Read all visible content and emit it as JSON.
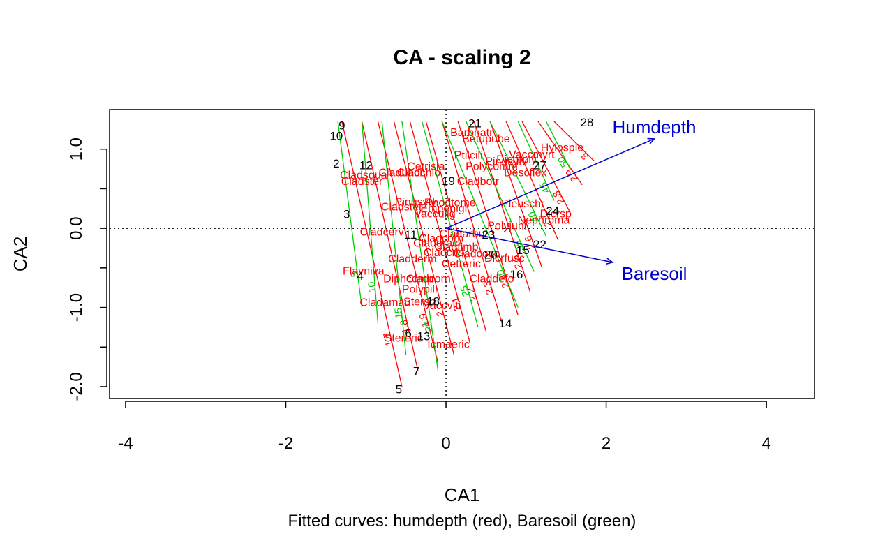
{
  "chart_data": {
    "type": "scatter",
    "title": "CA - scaling 2",
    "subtitle": "Fitted curves: humdepth (red), Baresoil (green)",
    "xlabel": "CA1",
    "ylabel": "CA2",
    "xlim": [
      -4.2,
      4.6
    ],
    "ylim": [
      -2.15,
      1.5
    ],
    "x_ticks": [
      -4,
      -2,
      0,
      2,
      4
    ],
    "y_ticks": [
      -2.0,
      -1.0,
      0.0,
      1.0
    ],
    "y_tick_labels": [
      "-2.0",
      "-1.0",
      "0.0",
      "1.0"
    ],
    "x_tick_labels": [
      "-4",
      "-2",
      "0",
      "2",
      "4"
    ],
    "colors": {
      "sites": "#000000",
      "species": "#ff0000",
      "env_arrows": "#0000cd",
      "humdepth_contours": "#ff0000",
      "baresoil_contours": "#00cc00",
      "axes": "#000000"
    },
    "sites": [
      {
        "label": "9",
        "x": -1.3,
        "y": 1.3
      },
      {
        "label": "10",
        "x": -1.37,
        "y": 1.17
      },
      {
        "label": "21",
        "x": 0.36,
        "y": 1.33
      },
      {
        "label": "28",
        "x": 1.76,
        "y": 1.34
      },
      {
        "label": "2",
        "x": -1.37,
        "y": 0.82
      },
      {
        "label": "12",
        "x": -1.0,
        "y": 0.8
      },
      {
        "label": "19",
        "x": 0.03,
        "y": 0.6
      },
      {
        "label": "27",
        "x": 1.17,
        "y": 0.8
      },
      {
        "label": "3",
        "x": -1.24,
        "y": 0.18
      },
      {
        "label": "24",
        "x": 1.33,
        "y": 0.22
      },
      {
        "label": "11",
        "x": -0.44,
        "y": -0.08
      },
      {
        "label": "23",
        "x": 0.53,
        "y": -0.08
      },
      {
        "label": "20",
        "x": 0.56,
        "y": -0.33
      },
      {
        "label": "15",
        "x": 0.96,
        "y": -0.27
      },
      {
        "label": "22",
        "x": 1.17,
        "y": -0.2
      },
      {
        "label": "16",
        "x": 0.88,
        "y": -0.58
      },
      {
        "label": "4",
        "x": -1.07,
        "y": -0.6
      },
      {
        "label": "18",
        "x": -0.16,
        "y": -0.92
      },
      {
        "label": "14",
        "x": 0.74,
        "y": -1.2
      },
      {
        "label": "6",
        "x": -0.47,
        "y": -1.32
      },
      {
        "label": "13",
        "x": -0.28,
        "y": -1.36
      },
      {
        "label": "7",
        "x": -0.37,
        "y": -1.8
      },
      {
        "label": "5",
        "x": -0.59,
        "y": -2.03
      }
    ],
    "species": [
      {
        "label": "Barbhatr",
        "x": 0.32,
        "y": 1.22
      },
      {
        "label": "Betupube",
        "x": 0.5,
        "y": 1.14
      },
      {
        "label": "Hylosple",
        "x": 1.45,
        "y": 1.03
      },
      {
        "label": "Vaccmyrt",
        "x": 1.07,
        "y": 0.94
      },
      {
        "label": "Ptilcili",
        "x": 0.28,
        "y": 0.93
      },
      {
        "label": "Dicrpoly",
        "x": 0.88,
        "y": 0.88
      },
      {
        "label": "Pinusylv",
        "x": 0.75,
        "y": 0.85
      },
      {
        "label": "Cetrisla",
        "x": -0.25,
        "y": 0.79
      },
      {
        "label": "Polycomm",
        "x": 0.57,
        "y": 0.79
      },
      {
        "label": "Descflex",
        "x": 0.99,
        "y": 0.71
      },
      {
        "label": "Cladsqua",
        "x": -1.03,
        "y": 0.68
      },
      {
        "label": "Claduncl",
        "x": -0.57,
        "y": 0.71
      },
      {
        "label": "Cladchlo",
        "x": -0.34,
        "y": 0.71
      },
      {
        "label": "Cladster",
        "x": -1.05,
        "y": 0.6
      },
      {
        "label": "Cladbotr",
        "x": 0.4,
        "y": 0.6
      },
      {
        "label": "Pinusylv2",
        "x": -0.38,
        "y": 0.34
      },
      {
        "label": "Rhodtome",
        "x": 0.05,
        "y": 0.33
      },
      {
        "label": "Pleuschr",
        "x": 0.96,
        "y": 0.32
      },
      {
        "label": "Cladstel",
        "x": -0.56,
        "y": 0.28
      },
      {
        "label": "Empenigr",
        "x": -0.02,
        "y": 0.26
      },
      {
        "label": "Vacculig",
        "x": -0.14,
        "y": 0.19
      },
      {
        "label": "Dicrsp",
        "x": 1.37,
        "y": 0.19
      },
      {
        "label": "Nephroma",
        "x": 1.22,
        "y": 0.11
      },
      {
        "label": "Polyjuni",
        "x": 0.76,
        "y": 0.04
      },
      {
        "label": "Cladcerv",
        "x": -0.8,
        "y": -0.04
      },
      {
        "label": "Cladarbu",
        "x": 0.2,
        "y": -0.06
      },
      {
        "label": "Cladcorn",
        "x": -0.06,
        "y": -0.12
      },
      {
        "label": "Cladgrac",
        "x": -0.13,
        "y": -0.18
      },
      {
        "label": "Cladfimb",
        "x": 0.13,
        "y": -0.23
      },
      {
        "label": "Cladcris",
        "x": -0.03,
        "y": -0.3
      },
      {
        "label": "Cladcocc",
        "x": 0.38,
        "y": -0.31
      },
      {
        "label": "Dicrfusc",
        "x": 0.73,
        "y": -0.37
      },
      {
        "label": "Cladderm",
        "x": -0.42,
        "y": -0.38
      },
      {
        "label": "Cetreric",
        "x": 0.19,
        "y": -0.44
      },
      {
        "label": "Flavniva",
        "x": -1.03,
        "y": -0.53
      },
      {
        "label": "Diphcomp",
        "x": -0.47,
        "y": -0.63
      },
      {
        "label": "Cladcorn2",
        "x": -0.22,
        "y": -0.63
      },
      {
        "label": "Claddefo",
        "x": 0.57,
        "y": -0.63
      },
      {
        "label": "Polypili",
        "x": -0.33,
        "y": -0.76
      },
      {
        "label": "Cladamau",
        "x": -0.76,
        "y": -0.93
      },
      {
        "label": "Stersp",
        "x": -0.33,
        "y": -0.92
      },
      {
        "label": "Vaccviti",
        "x": -0.05,
        "y": -0.97
      },
      {
        "label": "Stereric",
        "x": -0.53,
        "y": -1.38
      },
      {
        "label": "Icmaeric",
        "x": 0.03,
        "y": -1.46
      }
    ],
    "env_vectors": [
      {
        "label": "Humdepth",
        "x": 2.6,
        "y": 1.13,
        "label_x": 2.6,
        "label_y": 1.28
      },
      {
        "label": "Baresoil",
        "x": 2.08,
        "y": -0.43,
        "label_x": 2.6,
        "label_y": -0.57
      }
    ],
    "humdepth_contours": [
      {
        "level": "1.7",
        "x1": -1.3,
        "y1": 1.35,
        "x2": -0.55,
        "y2": -2.0
      },
      {
        "level": "1.8",
        "x1": -1.05,
        "y1": 1.35,
        "x2": -0.35,
        "y2": -1.8
      },
      {
        "level": "1.9",
        "x1": -0.85,
        "y1": 1.35,
        "x2": -0.1,
        "y2": -1.7
      },
      {
        "level": "2",
        "x1": -0.65,
        "y1": 1.35,
        "x2": 0.1,
        "y2": -1.6
      },
      {
        "level": "2.1",
        "x1": -0.45,
        "y1": 1.35,
        "x2": 0.3,
        "y2": -1.45
      },
      {
        "level": "2.2",
        "x1": -0.25,
        "y1": 1.35,
        "x2": 0.5,
        "y2": -1.3
      },
      {
        "level": "2.3",
        "x1": -0.05,
        "y1": 1.35,
        "x2": 0.7,
        "y2": -1.2
      },
      {
        "level": "2.4",
        "x1": 0.15,
        "y1": 1.35,
        "x2": 0.9,
        "y2": -1.1
      },
      {
        "level": "2.5",
        "x1": 0.35,
        "y1": 1.35,
        "x2": 1.05,
        "y2": -0.8
      },
      {
        "level": "2.6",
        "x1": 0.55,
        "y1": 1.35,
        "x2": 1.2,
        "y2": -0.5
      },
      {
        "level": "2.7",
        "x1": 0.75,
        "y1": 1.35,
        "x2": 1.4,
        "y2": -0.15
      },
      {
        "level": "2.8",
        "x1": 0.95,
        "y1": 1.35,
        "x2": 1.55,
        "y2": 0.2
      },
      {
        "level": "2.9",
        "x1": 1.15,
        "y1": 1.35,
        "x2": 1.7,
        "y2": 0.55
      },
      {
        "level": "3",
        "x1": 1.35,
        "y1": 1.35,
        "x2": 1.85,
        "y2": 0.85
      }
    ],
    "baresoil_contours": [
      {
        "level": "5",
        "x1": -1.35,
        "y1": 1.35,
        "x2": -1.05,
        "y2": -1.0
      },
      {
        "level": "10",
        "x1": -1.05,
        "y1": 1.35,
        "x2": -0.85,
        "y2": -1.2
      },
      {
        "level": "15",
        "x1": -0.8,
        "y1": 1.35,
        "x2": -0.5,
        "y2": -1.6
      },
      {
        "level": "20",
        "x1": -0.55,
        "y1": 1.35,
        "x2": -0.1,
        "y2": -1.8
      },
      {
        "level": "25",
        "x1": -0.3,
        "y1": 1.35,
        "x2": 0.4,
        "y2": -1.25
      },
      {
        "level": "30",
        "x1": -0.05,
        "y1": 1.35,
        "x2": 0.9,
        "y2": -1.0
      },
      {
        "level": "35",
        "x1": 0.25,
        "y1": 1.35,
        "x2": 1.1,
        "y2": -0.55
      },
      {
        "level": "40",
        "x1": 0.55,
        "y1": 1.35,
        "x2": 1.25,
        "y2": -0.1
      },
      {
        "level": "45",
        "x1": 0.9,
        "y1": 1.35,
        "x2": 1.35,
        "y2": 0.35
      },
      {
        "level": "50",
        "x1": 1.25,
        "y1": 1.35,
        "x2": 1.55,
        "y2": 0.75
      }
    ]
  }
}
